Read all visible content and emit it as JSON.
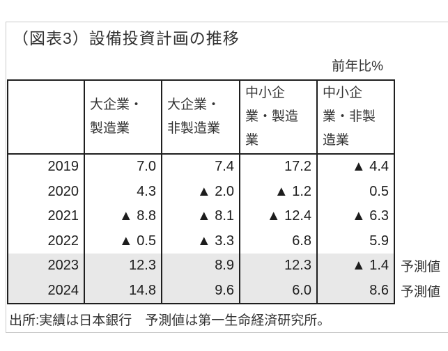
{
  "title": "（図表3）設備投資計画の推移",
  "unit_label": "前年比%",
  "table": {
    "columns": [
      "",
      "大企業・\n製造業",
      "大企業・\n非製造業",
      "中小企\n業・製造\n業",
      "中小企\n業・非製\n造業"
    ],
    "rows": [
      {
        "year": "2019",
        "values": [
          "7.0",
          "7.4",
          "17.2",
          "▲ 4.4"
        ],
        "note": ""
      },
      {
        "year": "2020",
        "values": [
          "4.3",
          "▲ 2.0",
          "▲ 1.2",
          "0.5"
        ],
        "note": ""
      },
      {
        "year": "2021",
        "values": [
          "▲ 8.8",
          "▲ 8.1",
          "▲ 12.4",
          "▲ 6.3"
        ],
        "note": ""
      },
      {
        "year": "2022",
        "values": [
          "▲ 0.5",
          "▲ 3.3",
          "6.8",
          "5.9"
        ],
        "note": ""
      },
      {
        "year": "2023",
        "values": [
          "12.3",
          "8.9",
          "12.3",
          "▲ 1.4"
        ],
        "note": "予測値"
      },
      {
        "year": "2024",
        "values": [
          "14.8",
          "9.6",
          "6.0",
          "8.6"
        ],
        "note": "予測値"
      }
    ]
  },
  "footer": "出所:実績は日本銀行　予測値は第一生命経済研究所。",
  "colors": {
    "forecast_row_bg": "#e8e8e8",
    "table_border": "#1f1f1f",
    "outer_border": "#c9c9c9",
    "text": "#262626"
  },
  "chart_data": {
    "type": "table",
    "title": "（図表3）設備投資計画の推移",
    "unit": "前年比%",
    "negative_marker": "▲",
    "categories": [
      "2019",
      "2020",
      "2021",
      "2022",
      "2023",
      "2024"
    ],
    "series": [
      {
        "name": "大企業・製造業",
        "values": [
          7.0,
          4.3,
          -8.8,
          -0.5,
          12.3,
          14.8
        ]
      },
      {
        "name": "大企業・非製造業",
        "values": [
          7.4,
          -2.0,
          -8.1,
          -3.3,
          8.9,
          9.6
        ]
      },
      {
        "name": "中小企業・製造業",
        "values": [
          17.2,
          -1.2,
          -12.4,
          6.8,
          12.3,
          6.0
        ]
      },
      {
        "name": "中小企業・非製造業",
        "values": [
          -4.4,
          0.5,
          -6.3,
          5.9,
          -1.4,
          8.6
        ]
      }
    ],
    "forecast_years": [
      "2023",
      "2024"
    ],
    "forecast_label": "予測値",
    "source": "出所:実績は日本銀行　予測値は第一生命経済研究所。"
  }
}
